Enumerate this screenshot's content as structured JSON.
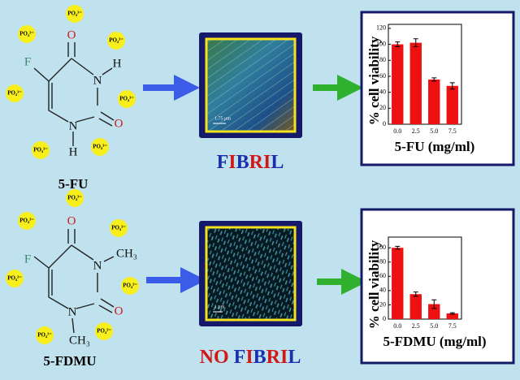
{
  "molecules": [
    {
      "name": "5-FU",
      "atoms": {
        "o_top": "O",
        "n3": "N",
        "h3": "H",
        "o2": "O",
        "n1": "N",
        "h1": "H",
        "f": "F"
      }
    },
    {
      "name": "5-FDMU",
      "atoms": {
        "o_top": "O",
        "n3": "N",
        "h3": "CH₃",
        "o2": "O",
        "n1": "N",
        "h1": "CH₃",
        "f": "F"
      }
    }
  ],
  "ion_label": "PO₄³⁻",
  "results": [
    {
      "text": "FIBRIL",
      "letter_colors": [
        "#1a2fb0",
        "#d01818",
        "#1a2fb0",
        "#d01818",
        "#d01818",
        "#1a2fb0"
      ]
    },
    {
      "text": "NO FIBRIL",
      "letter_colors": [
        "#d01818",
        "#d01818",
        "#1a2fb0",
        "#1a2fb0",
        "#d01818",
        "#1a2fb0",
        "#d01818",
        "#d01818",
        "#1a2fb0"
      ]
    }
  ],
  "scale_bars": [
    "1.75 μm",
    "1 μm"
  ],
  "chart_data": [
    {
      "type": "bar",
      "y_label": "% cell viability",
      "x_label": "5-FU (mg/ml)",
      "categories": [
        "0.0",
        "2.5",
        "5.0",
        "7.5"
      ],
      "values": [
        100,
        102,
        56,
        48
      ],
      "errors": [
        3,
        5,
        2,
        4
      ],
      "color": "#ee1111",
      "ylim": [
        0,
        125
      ],
      "yticks": [
        0,
        20,
        40,
        60,
        80,
        100,
        120
      ]
    },
    {
      "type": "bar",
      "y_label": "% cell viability",
      "x_label": "5-FDMU (mg/ml)",
      "categories": [
        "0.0",
        "2.5",
        "5.0",
        "7.5"
      ],
      "values": [
        100,
        35,
        21,
        8
      ],
      "errors": [
        2,
        3,
        6,
        1
      ],
      "color": "#ee1111",
      "ylim": [
        0,
        115
      ],
      "yticks": [
        0,
        20,
        40,
        60,
        80,
        100
      ]
    }
  ]
}
